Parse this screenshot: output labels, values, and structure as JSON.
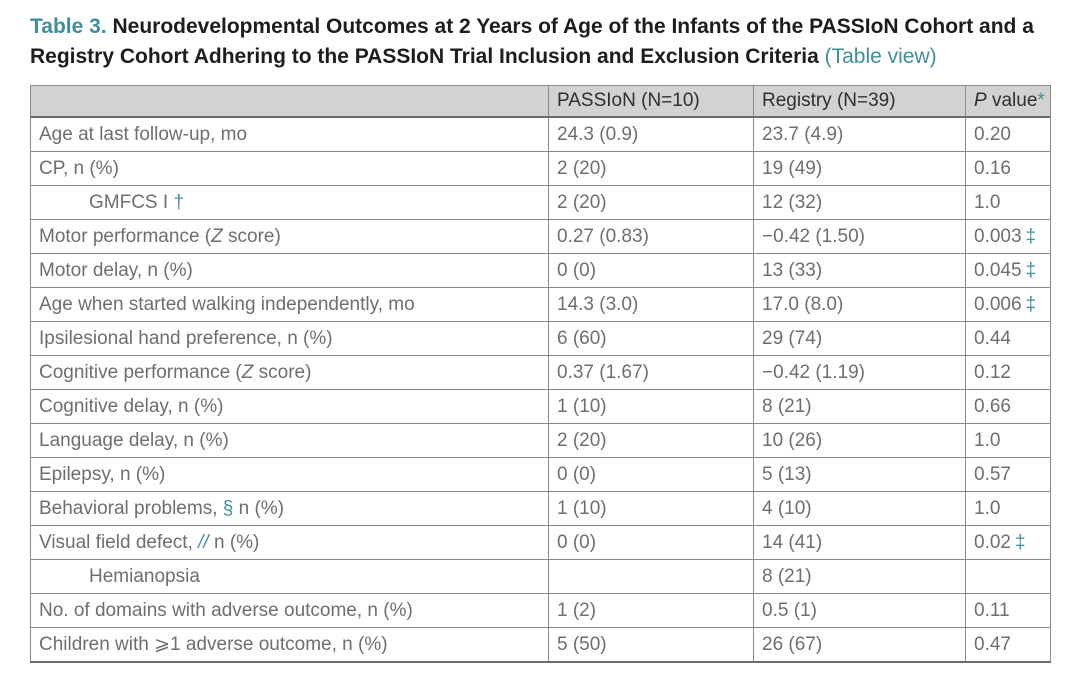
{
  "title": {
    "label": "Table 3.",
    "text": " Neurodevelopmental Outcomes at 2 Years of Age of the Infants of the PASSIoN Cohort and a Registry Cohort Adhering to the PASSIoN Trial Inclusion and Exclusion Criteria ",
    "link": "(Table view)"
  },
  "colors": {
    "accent": "#3f8e9c",
    "title_text": "#1d1d1d",
    "body_text": "#6e6e6e",
    "header_text": "#2f2f2f",
    "header_bg": "#d2d2d2",
    "border": "#8a8a8a",
    "border_strong": "#6b6b6b"
  },
  "table": {
    "header": {
      "col0": "",
      "col1": "PASSIoN (N=10)",
      "col2": "Registry (N=39)",
      "col3_parts": [
        {
          "t": "P",
          "s": "i"
        },
        {
          "t": " value",
          "s": "n"
        },
        {
          "t": "*",
          "s": "m"
        }
      ]
    },
    "rows": [
      {
        "indent": false,
        "label_parts": [
          {
            "t": "Age at last follow-up, mo",
            "s": "n"
          }
        ],
        "passion": "24.3 (0.9)",
        "registry": "23.7 (4.9)",
        "p": "0.20",
        "p_mark": ""
      },
      {
        "indent": false,
        "label_parts": [
          {
            "t": "CP, n (%)",
            "s": "n"
          }
        ],
        "passion": "2 (20)",
        "registry": "19 (49)",
        "p": "0.16",
        "p_mark": ""
      },
      {
        "indent": true,
        "label_parts": [
          {
            "t": "GMFCS I ",
            "s": "n"
          },
          {
            "t": "†",
            "s": "m"
          }
        ],
        "passion": "2 (20)",
        "registry": "12 (32)",
        "p": "1.0",
        "p_mark": ""
      },
      {
        "indent": false,
        "label_parts": [
          {
            "t": "Motor performance (",
            "s": "n"
          },
          {
            "t": "Z",
            "s": "i"
          },
          {
            "t": " score)",
            "s": "n"
          }
        ],
        "passion": "0.27 (0.83)",
        "registry": "−0.42 (1.50)",
        "p": "0.003",
        "p_mark": "‡"
      },
      {
        "indent": false,
        "label_parts": [
          {
            "t": "Motor delay, n (%)",
            "s": "n"
          }
        ],
        "passion": "0 (0)",
        "registry": "13 (33)",
        "p": "0.045",
        "p_mark": "‡"
      },
      {
        "indent": false,
        "label_parts": [
          {
            "t": "Age when started walking independently, mo",
            "s": "n"
          }
        ],
        "passion": "14.3 (3.0)",
        "registry": "17.0 (8.0)",
        "p": "0.006",
        "p_mark": "‡"
      },
      {
        "indent": false,
        "label_parts": [
          {
            "t": "Ipsilesional hand preference, n (%)",
            "s": "n"
          }
        ],
        "passion": "6 (60)",
        "registry": "29 (74)",
        "p": "0.44",
        "p_mark": ""
      },
      {
        "indent": false,
        "label_parts": [
          {
            "t": "Cognitive performance (",
            "s": "n"
          },
          {
            "t": "Z",
            "s": "i"
          },
          {
            "t": " score)",
            "s": "n"
          }
        ],
        "passion": "0.37 (1.67)",
        "registry": "−0.42 (1.19)",
        "p": "0.12",
        "p_mark": ""
      },
      {
        "indent": false,
        "label_parts": [
          {
            "t": "Cognitive delay, n (%)",
            "s": "n"
          }
        ],
        "passion": "1 (10)",
        "registry": "8 (21)",
        "p": "0.66",
        "p_mark": ""
      },
      {
        "indent": false,
        "label_parts": [
          {
            "t": "Language delay, n (%)",
            "s": "n"
          }
        ],
        "passion": "2 (20)",
        "registry": "10 (26)",
        "p": "1.0",
        "p_mark": ""
      },
      {
        "indent": false,
        "label_parts": [
          {
            "t": "Epilepsy, n (%)",
            "s": "n"
          }
        ],
        "passion": "0 (0)",
        "registry": "5 (13)",
        "p": "0.57",
        "p_mark": ""
      },
      {
        "indent": false,
        "label_parts": [
          {
            "t": "Behavioral problems, ",
            "s": "n"
          },
          {
            "t": "§",
            "s": "m"
          },
          {
            "t": "  n (%)",
            "s": "n"
          }
        ],
        "passion": "1 (10)",
        "registry": "4 (10)",
        "p": "1.0",
        "p_mark": ""
      },
      {
        "indent": false,
        "label_parts": [
          {
            "t": "Visual field defect, ",
            "s": "n"
          },
          {
            "t": "//",
            "s": "mi"
          },
          {
            "t": "  n (%)",
            "s": "n"
          }
        ],
        "passion": "0 (0)",
        "registry": "14 (41)",
        "p": "0.02",
        "p_mark": "‡"
      },
      {
        "indent": true,
        "label_parts": [
          {
            "t": "Hemianopsia",
            "s": "n"
          }
        ],
        "passion": "",
        "registry": "8 (21)",
        "p": "",
        "p_mark": ""
      },
      {
        "indent": false,
        "label_parts": [
          {
            "t": "No. of domains with adverse outcome, n (%)",
            "s": "n"
          }
        ],
        "passion": "1 (2)",
        "registry": "0.5 (1)",
        "p": "0.11",
        "p_mark": ""
      },
      {
        "indent": false,
        "label_parts": [
          {
            "t": "Children with ⩾1 adverse outcome, n (%)",
            "s": "n"
          }
        ],
        "passion": "5 (50)",
        "registry": "26 (67)",
        "p": "0.47",
        "p_mark": ""
      }
    ]
  }
}
